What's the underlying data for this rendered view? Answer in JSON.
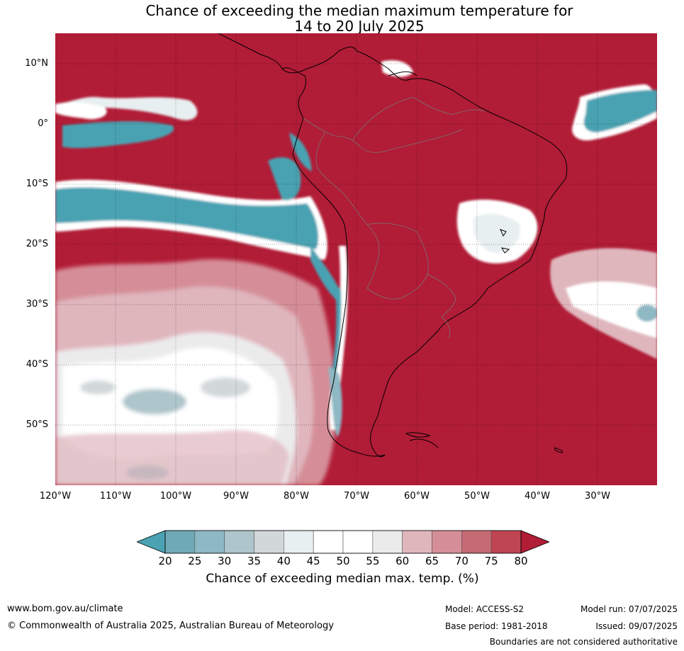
{
  "title": {
    "line1": "Chance of exceeding the median maximum temperature for",
    "line2": "14 to 20 July 2025"
  },
  "lat_labels": [
    "10°N",
    "0°",
    "10°S",
    "20°S",
    "30°S",
    "40°S",
    "50°S"
  ],
  "lon_labels": [
    "120°W",
    "110°W",
    "100°W",
    "90°W",
    "80°W",
    "70°W",
    "60°W",
    "50°W",
    "40°W",
    "30°W"
  ],
  "colorbar": {
    "ticks": [
      "20",
      "25",
      "30",
      "35",
      "40",
      "45",
      "50",
      "55",
      "60",
      "65",
      "70",
      "75",
      "80"
    ],
    "colors": [
      "#4aa2b2",
      "#6fa9b6",
      "#8db8c4",
      "#adc5cb",
      "#d2d8da",
      "#e8eff1",
      "#ffffff",
      "#ffffff",
      "#ecebec",
      "#e0b6bd",
      "#d58e98",
      "#c66a74",
      "#c04553",
      "#b11c36"
    ],
    "label": "Chance of exceeding median max. temp. (%)"
  },
  "footer": {
    "url": "www.bom.gov.au/climate",
    "copyright": "© Commonwealth of Australia 2025, Australian Bureau of Meteorology",
    "model": "Model: ACCESS-S2",
    "base_period": "Base period: 1981-2018",
    "model_run": "Model run: 07/07/2025",
    "issued": "Issued: 09/07/2025",
    "disclaimer": "Boundaries are not considered authoritative"
  }
}
